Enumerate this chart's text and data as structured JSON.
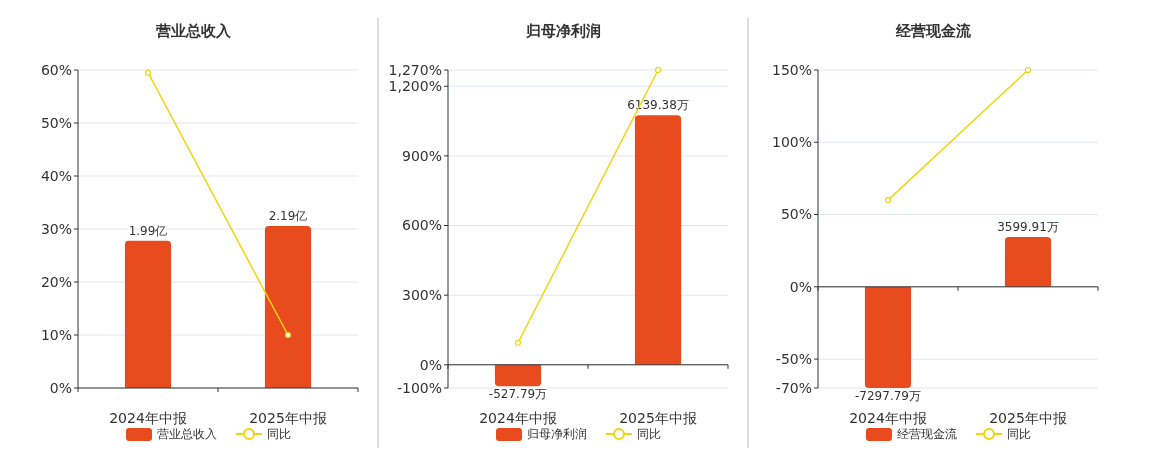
{
  "chart_data": [
    {
      "type": "bar",
      "title": "营业总收入",
      "categories": [
        "2024年中报",
        "2025年中报"
      ],
      "legend": "bottom",
      "grid": "y",
      "marker": "circle",
      "ylim": [
        0,
        60
      ],
      "yticks": [
        {
          "value": 0,
          "label": "0%"
        },
        {
          "value": 10,
          "label": "10%"
        },
        {
          "value": 20,
          "label": "20%"
        },
        {
          "value": 30,
          "label": "30%"
        },
        {
          "value": 40,
          "label": "40%"
        },
        {
          "value": 50,
          "label": "50%"
        },
        {
          "value": 60,
          "label": "60%"
        }
      ],
      "y2lim": [
        0,
        4.3
      ],
      "tick_labels": "x",
      "series": [
        {
          "name": "营业总收入",
          "axis": "y2",
          "color": "#e84c1e",
          "values": [
            1.99,
            2.19
          ],
          "value_labels": [
            "1.99亿",
            "2.19亿"
          ]
        },
        {
          "name": "同比",
          "type": "line",
          "color": "#f2d40e",
          "values": [
            59.5,
            10
          ]
        }
      ]
    },
    {
      "type": "bar",
      "title": "归母净利润",
      "categories": [
        "2024年中报",
        "2025年中报"
      ],
      "legend": "bottom",
      "grid": "y",
      "marker": "circle",
      "ylim": [
        -100,
        1270
      ],
      "yticks": [
        {
          "value": -100,
          "label": "-100%"
        },
        {
          "value": 0,
          "label": "0%"
        },
        {
          "value": 300,
          "label": "300%"
        },
        {
          "value": 600,
          "label": "600%"
        },
        {
          "value": 900,
          "label": "900%"
        },
        {
          "value": 1200,
          "label": "1,200%"
        },
        {
          "value": 1270,
          "label": "1,270%"
        }
      ],
      "y2lim": [
        -571,
        7250
      ],
      "tick_labels": "x",
      "series": [
        {
          "name": "归母净利润",
          "axis": "y2",
          "color": "#e84c1e",
          "values": [
            -527.79,
            6139.38
          ],
          "value_labels": [
            "-527.79万",
            "6139.38万"
          ]
        },
        {
          "name": "同比",
          "type": "line",
          "color": "#f2d40e",
          "values": [
            95,
            1270
          ]
        }
      ]
    },
    {
      "type": "bar",
      "title": "经营现金流",
      "categories": [
        "2024年中报",
        "2025年中报"
      ],
      "legend": "bottom",
      "grid": "y",
      "marker": "circle",
      "ylim": [
        -70,
        150
      ],
      "yticks": [
        {
          "value": -70,
          "label": "-70%"
        },
        {
          "value": -50,
          "label": "-50%"
        },
        {
          "value": 0,
          "label": "0%"
        },
        {
          "value": 50,
          "label": "50%"
        },
        {
          "value": 100,
          "label": "100%"
        },
        {
          "value": 150,
          "label": "150%"
        }
      ],
      "y2lim": [
        -7300,
        15640
      ],
      "tick_labels": "x",
      "series": [
        {
          "name": "经营现金流",
          "axis": "y2",
          "color": "#e84c1e",
          "values": [
            -7297.79,
            3599.91
          ],
          "value_labels": [
            "-7297.79万",
            "3599.91万"
          ]
        },
        {
          "name": "同比",
          "type": "line",
          "color": "#f2d40e",
          "values": [
            60,
            150
          ]
        }
      ]
    }
  ]
}
